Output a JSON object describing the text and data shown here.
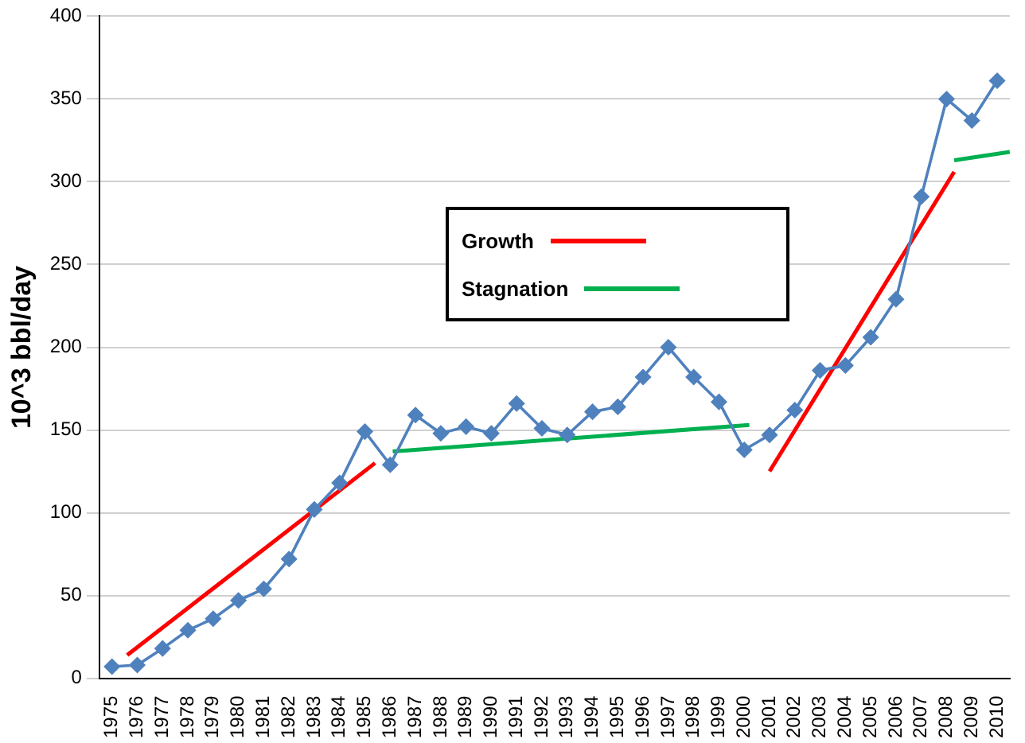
{
  "chart_data": {
    "type": "line",
    "ylabel": "10^3 bbl/day",
    "xlim": [
      1974.5,
      2010.5
    ],
    "xticks": [
      1975,
      1976,
      1977,
      1978,
      1979,
      1980,
      1981,
      1982,
      1983,
      1984,
      1985,
      1986,
      1987,
      1988,
      1989,
      1990,
      1991,
      1992,
      1993,
      1994,
      1995,
      1996,
      1997,
      1998,
      1999,
      2000,
      2001,
      2002,
      2003,
      2004,
      2005,
      2006,
      2007,
      2008,
      2009,
      2010
    ],
    "ylim": [
      0,
      400
    ],
    "yticks": [
      0,
      50,
      100,
      150,
      200,
      250,
      300,
      350,
      400
    ],
    "grid": "y",
    "legend": "top",
    "series": [
      {
        "color": "#4f81bd",
        "marker": "diamond",
        "x": [
          1975,
          1976,
          1977,
          1978,
          1979,
          1980,
          1981,
          1982,
          1983,
          1984,
          1985,
          1986,
          1987,
          1988,
          1989,
          1990,
          1991,
          1992,
          1993,
          1994,
          1995,
          1996,
          1997,
          1998,
          1999,
          2000,
          2001,
          2002,
          2003,
          2004,
          2005,
          2006,
          2007,
          2008,
          2009,
          2010
        ],
        "values": [
          7,
          8,
          18,
          29,
          36,
          47,
          54,
          72,
          102,
          118,
          149,
          129,
          159,
          148,
          152,
          148,
          166,
          151,
          147,
          161,
          164,
          182,
          200,
          182,
          167,
          138,
          147,
          162,
          186,
          189,
          206,
          229,
          291,
          350,
          337,
          361
        ]
      },
      {
        "name": "Growth",
        "color": "#ff0000",
        "marker": "none",
        "x": [
          1975.6,
          1985.4,
          1993,
          2001.0,
          2008.3
        ],
        "values": [
          14,
          130,
          null,
          125,
          306
        ]
      },
      {
        "name": "Stagnation",
        "color": "#00b050",
        "marker": "none",
        "x": [
          1986.1,
          2000.2,
          2004,
          2008.3,
          2010.5
        ],
        "values": [
          137,
          153,
          null,
          313,
          318
        ]
      }
    ]
  }
}
